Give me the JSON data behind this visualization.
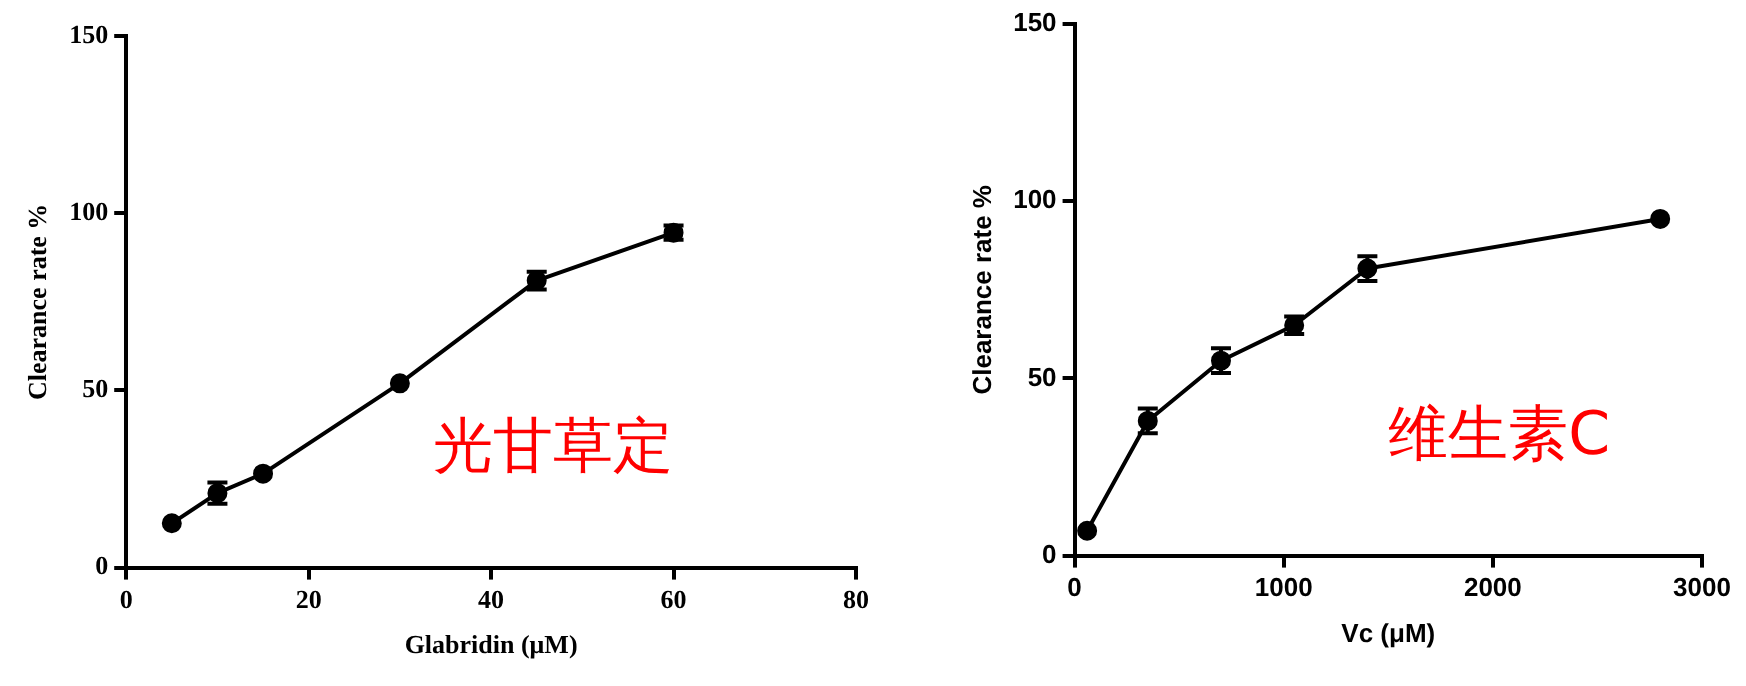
{
  "chart_data": [
    {
      "type": "line",
      "xlabel": "Glabridin (μM)",
      "ylabel": "Clearance rate %",
      "x": [
        5,
        10,
        15,
        30,
        45,
        60
      ],
      "series": [
        {
          "color": "#000000",
          "values": [
            12.5,
            21,
            26.5,
            52,
            81,
            94.5
          ],
          "errors": [
            null,
            3,
            null,
            null,
            2.5,
            2
          ]
        }
      ],
      "xlim": [
        0,
        80
      ],
      "xticks": [
        0,
        20,
        40,
        60,
        80
      ],
      "ylim": [
        0,
        150
      ],
      "yticks": [
        0,
        50,
        100,
        150
      ],
      "grid": false,
      "legend": false,
      "marker": "circle",
      "line_style": "solid",
      "annotations": [
        "光甘草定"
      ]
    },
    {
      "type": "line",
      "xlabel": "Vc (μM)",
      "ylabel": "Clearance rate %",
      "x": [
        60,
        350,
        700,
        1050,
        1400,
        2800
      ],
      "series": [
        {
          "color": "#000000",
          "values": [
            7,
            38,
            55,
            65,
            81,
            95
          ],
          "errors": [
            null,
            3.5,
            3.5,
            2.5,
            3.5,
            null
          ]
        }
      ],
      "xlim": [
        0,
        3000
      ],
      "xticks": [
        0,
        1000,
        2000,
        3000
      ],
      "ylim": [
        0,
        150
      ],
      "yticks": [
        0,
        50,
        100,
        150
      ],
      "grid": false,
      "legend": false,
      "marker": "circle",
      "line_style": "solid",
      "annotations": [
        "维生素C"
      ]
    }
  ]
}
